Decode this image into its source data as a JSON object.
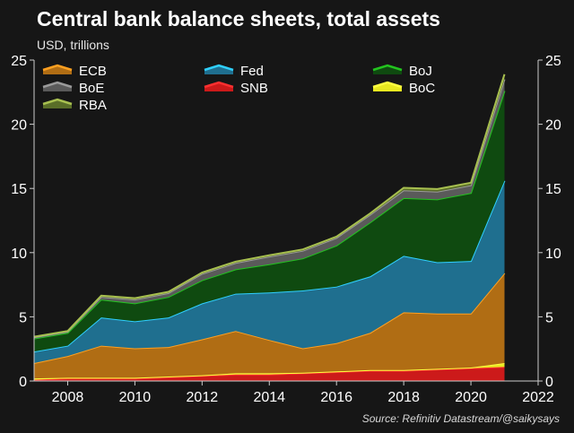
{
  "title": "Central bank balance sheets, total assets",
  "subtitle": "USD, trillions",
  "source": "Source: Refinitiv Datastream/@saikysays",
  "colors": {
    "background": "#161616",
    "text": "#ffffff",
    "axis": "#cccccc"
  },
  "chart_data": {
    "type": "area",
    "stacked": true,
    "x": [
      2007,
      2008,
      2009,
      2010,
      2011,
      2012,
      2013,
      2014,
      2015,
      2016,
      2017,
      2018,
      2019,
      2020,
      2021
    ],
    "xlim": [
      2007,
      2022
    ],
    "x_ticks": [
      2008,
      2010,
      2012,
      2014,
      2016,
      2018,
      2020,
      2022
    ],
    "ylim": [
      0,
      25
    ],
    "y_ticks": [
      0,
      5,
      10,
      15,
      20,
      25
    ],
    "grid": false,
    "legend_placement": "top-left",
    "series": [
      {
        "name": "SNB",
        "color": "#cc1a1a",
        "values": [
          0.1,
          0.2,
          0.2,
          0.2,
          0.3,
          0.4,
          0.5,
          0.5,
          0.6,
          0.7,
          0.8,
          0.8,
          0.9,
          1.0,
          1.1
        ]
      },
      {
        "name": "BoC",
        "color": "#e8e820",
        "values": [
          0.1,
          0.05,
          0.05,
          0.05,
          0.05,
          0.05,
          0.1,
          0.1,
          0.05,
          0.05,
          0.05,
          0.05,
          0.05,
          0.05,
          0.3
        ]
      },
      {
        "name": "ECB",
        "color": "#b06d14",
        "values": [
          1.2,
          1.7,
          2.5,
          2.3,
          2.3,
          2.8,
          3.3,
          2.6,
          1.9,
          2.2,
          2.9,
          4.5,
          4.3,
          4.2,
          7.0
        ]
      },
      {
        "name": "Fed",
        "color": "#1f6f8f",
        "values": [
          0.9,
          0.8,
          2.2,
          2.1,
          2.3,
          2.8,
          2.9,
          3.7,
          4.5,
          4.4,
          4.4,
          4.4,
          4.0,
          4.1,
          7.2
        ]
      },
      {
        "name": "BoJ",
        "color": "#0f4a10",
        "values": [
          1.0,
          1.0,
          1.4,
          1.4,
          1.6,
          1.8,
          1.9,
          2.2,
          2.5,
          3.2,
          4.2,
          4.5,
          4.9,
          5.3,
          7.0
        ]
      },
      {
        "name": "BoE",
        "color": "#5a5a5a",
        "values": [
          0.1,
          0.1,
          0.2,
          0.3,
          0.3,
          0.5,
          0.5,
          0.6,
          0.6,
          0.6,
          0.6,
          0.6,
          0.6,
          0.6,
          0.9
        ]
      },
      {
        "name": "RBA",
        "color": "#5a6e28",
        "values": [
          0.05,
          0.05,
          0.1,
          0.1,
          0.1,
          0.1,
          0.1,
          0.1,
          0.1,
          0.1,
          0.1,
          0.2,
          0.2,
          0.2,
          0.4
        ]
      }
    ],
    "legend": [
      {
        "name": "ECB",
        "color": "#b06d14"
      },
      {
        "name": "Fed",
        "color": "#1f6f8f"
      },
      {
        "name": "BoJ",
        "color": "#0f4a10"
      },
      {
        "name": "BoE",
        "color": "#5a5a5a"
      },
      {
        "name": "SNB",
        "color": "#cc1a1a"
      },
      {
        "name": "BoC",
        "color": "#e8e820"
      },
      {
        "name": "RBA",
        "color": "#5a6e28"
      }
    ],
    "edge_colors": {
      "SNB": "#ff3030",
      "BoC": "#ffff40",
      "ECB": "#ffa020",
      "Fed": "#2fd0ff",
      "BoJ": "#23c41f",
      "BoE": "#9a9a9a",
      "RBA": "#a8c050"
    }
  }
}
